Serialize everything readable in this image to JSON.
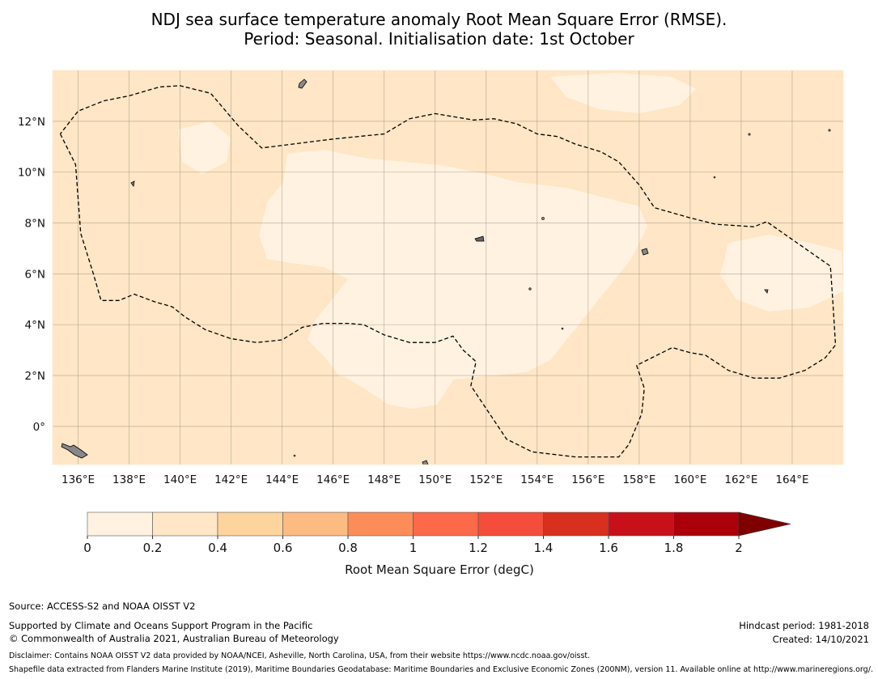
{
  "title": {
    "line1": "NDJ sea surface temperature anomaly Root Mean Square Error (RMSE).",
    "line2": "Period: Seasonal. Initialisation date: 1st October"
  },
  "map": {
    "lon_range": [
      135,
      166
    ],
    "lat_range": [
      -1.5,
      14
    ],
    "x_ticks": [
      "136°E",
      "138°E",
      "140°E",
      "142°E",
      "144°E",
      "146°E",
      "148°E",
      "150°E",
      "152°E",
      "154°E",
      "156°E",
      "158°E",
      "160°E",
      "162°E",
      "164°E"
    ],
    "x_tick_values": [
      136,
      138,
      140,
      142,
      144,
      146,
      148,
      150,
      152,
      154,
      156,
      158,
      160,
      162,
      164
    ],
    "y_ticks": [
      "0°",
      "2°N",
      "4°N",
      "6°N",
      "8°N",
      "10°N",
      "12°N"
    ],
    "y_tick_values": [
      0,
      2,
      4,
      6,
      8,
      10,
      12
    ],
    "background_color": "#fee6c6",
    "low_color": "#fff2e0",
    "eez_boundary": [
      [
        135.3,
        11.5
      ],
      [
        135.9,
        10.3
      ],
      [
        136.1,
        7.6
      ],
      [
        136.6,
        6.0
      ],
      [
        136.9,
        4.95
      ],
      [
        137.6,
        4.95
      ],
      [
        138.2,
        5.2
      ],
      [
        139.0,
        4.9
      ],
      [
        139.7,
        4.7
      ],
      [
        140.2,
        4.3
      ],
      [
        141.0,
        3.8
      ],
      [
        142.0,
        3.45
      ],
      [
        143.0,
        3.3
      ],
      [
        144.0,
        3.4
      ],
      [
        144.8,
        3.9
      ],
      [
        145.6,
        4.05
      ],
      [
        146.6,
        4.05
      ],
      [
        147.2,
        4.0
      ],
      [
        148.0,
        3.6
      ],
      [
        149.0,
        3.3
      ],
      [
        150.0,
        3.3
      ],
      [
        150.7,
        3.55
      ],
      [
        151.1,
        3.0
      ],
      [
        151.6,
        2.55
      ],
      [
        151.4,
        1.6
      ],
      [
        152.0,
        0.7
      ],
      [
        152.8,
        -0.5
      ],
      [
        153.8,
        -1.0
      ],
      [
        155.5,
        -1.2
      ],
      [
        157.2,
        -1.2
      ],
      [
        157.6,
        -0.7
      ],
      [
        158.1,
        0.5
      ],
      [
        158.2,
        1.5
      ],
      [
        157.9,
        2.4
      ],
      [
        158.5,
        2.7
      ],
      [
        159.3,
        3.1
      ],
      [
        160.0,
        2.9
      ],
      [
        160.6,
        2.8
      ],
      [
        161.5,
        2.2
      ],
      [
        162.5,
        1.9
      ],
      [
        163.5,
        1.9
      ],
      [
        164.5,
        2.2
      ],
      [
        165.3,
        2.7
      ],
      [
        165.7,
        3.2
      ],
      [
        165.6,
        4.8
      ],
      [
        165.5,
        6.3
      ],
      [
        164.5,
        7.0
      ],
      [
        163.5,
        7.7
      ],
      [
        163.0,
        8.05
      ],
      [
        162.5,
        7.85
      ],
      [
        161.0,
        7.95
      ],
      [
        160.0,
        8.2
      ],
      [
        158.6,
        8.6
      ],
      [
        158.0,
        9.5
      ],
      [
        157.2,
        10.4
      ],
      [
        156.5,
        10.8
      ],
      [
        155.5,
        11.1
      ],
      [
        154.8,
        11.4
      ],
      [
        154.0,
        11.5
      ],
      [
        153.2,
        11.9
      ],
      [
        152.3,
        12.1
      ],
      [
        151.5,
        12.05
      ],
      [
        150.0,
        12.3
      ],
      [
        149.0,
        12.1
      ],
      [
        148.0,
        11.5
      ],
      [
        146.0,
        11.3
      ],
      [
        144.0,
        11.05
      ],
      [
        143.2,
        10.95
      ],
      [
        142.3,
        11.8
      ],
      [
        141.2,
        13.1
      ],
      [
        140.0,
        13.4
      ],
      [
        139.2,
        13.35
      ],
      [
        138.0,
        13.0
      ],
      [
        137.0,
        12.8
      ],
      [
        136.0,
        12.4
      ],
      [
        135.3,
        11.5
      ]
    ]
  },
  "colorbar": {
    "ticks": [
      "0",
      "0.2",
      "0.4",
      "0.6",
      "0.8",
      "1",
      "1.2",
      "1.4",
      "1.6",
      "1.8",
      "2"
    ],
    "colors": [
      "#fff2e0",
      "#fee6c6",
      "#fdd49e",
      "#fdbb84",
      "#fc8d59",
      "#fc6a4a",
      "#f44d3b",
      "#d7301f",
      "#c8101a",
      "#a90009",
      "#7f0000"
    ],
    "label": "Root Mean Square Error (degC)"
  },
  "footer": {
    "source": "Source: ACCESS-S2 and NOAA OISST V2",
    "supported": "Supported by Climate and Oceans Support Program in the Pacific",
    "copyright": "© Commonwealth of Australia 2021, Australian Bureau of Meteorology",
    "hindcast": "Hindcast period: 1981-2018",
    "created": "Created: 14/10/2021",
    "disclaimer": "Disclaimer: Contains NOAA OISST V2 data provided by NOAA/NCEI, Asheville, North Carolina, USA, from their website https://www.ncdc.noaa.gov/oisst.",
    "shapefile": "Shapefile data extracted from Flanders Marine Institute (2019), Maritime Boundaries Geodatabase: Maritime Boundaries and Exclusive Economic Zones (200NM), version 11. Available online at http://www.marineregions.org/."
  }
}
